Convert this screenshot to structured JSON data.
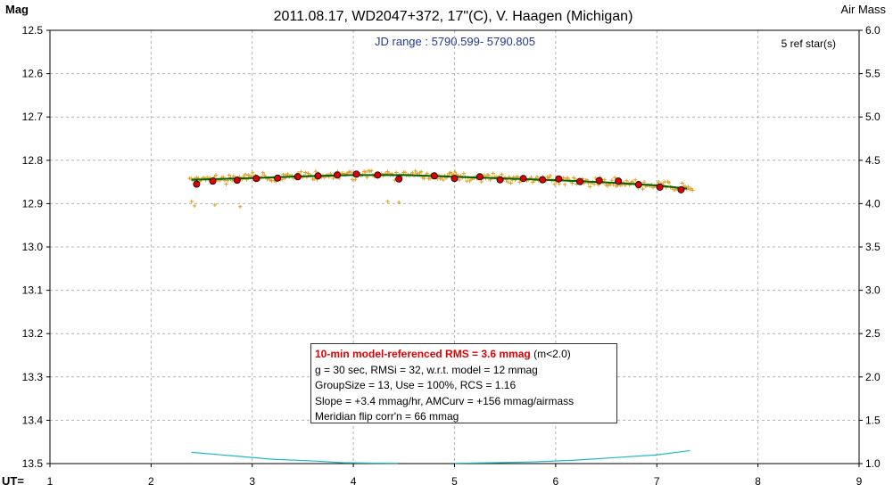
{
  "chart_data": {
    "type": "scatter",
    "title": "2011.08.17, WD2047+372, 17\"(C), V. Haagen (Michigan)",
    "ylabel_left": "Mag",
    "ylabel_right": "Air Mass",
    "xlabel": "UT=",
    "subtitle": "JD range : 5790.599- 5790.805",
    "ref_stars": "5 ref star(s)",
    "xlim": [
      1,
      9
    ],
    "ylim_left": [
      12.5,
      13.5
    ],
    "ylim_right": [
      1.0,
      6.0
    ],
    "x_ticks": [
      "1",
      "2",
      "3",
      "4",
      "5",
      "6",
      "7",
      "8",
      "9"
    ],
    "y_ticks_left": [
      "12.5",
      "12.6",
      "12.7",
      "12.8",
      "12.9",
      "13.0",
      "13.1",
      "13.2",
      "13.3",
      "13.4",
      "13.5"
    ],
    "y_ticks_right": [
      "6.0",
      "5.5",
      "5.0",
      "4.5",
      "4.0",
      "3.5",
      "3.0",
      "2.5",
      "2.0",
      "1.5",
      "1.0"
    ],
    "grid": true,
    "series": [
      {
        "kind": "binned_means",
        "color": "#dd0000",
        "x": [
          2.45,
          2.61,
          2.85,
          3.04,
          3.25,
          3.45,
          3.65,
          3.84,
          4.03,
          4.24,
          4.45,
          4.8,
          5.0,
          5.25,
          5.45,
          5.68,
          5.87,
          6.03,
          6.24,
          6.43,
          6.62,
          6.82,
          7.03,
          7.24
        ],
        "y": [
          12.855,
          12.848,
          12.846,
          12.842,
          12.841,
          12.838,
          12.836,
          12.834,
          12.832,
          12.834,
          12.843,
          12.836,
          12.842,
          12.838,
          12.845,
          12.842,
          12.845,
          12.843,
          12.849,
          12.847,
          12.848,
          12.856,
          12.862,
          12.868
        ]
      },
      {
        "kind": "model_fit",
        "color": "#006400",
        "x": [
          2.4,
          3.0,
          3.5,
          4.0,
          4.5,
          5.0,
          5.5,
          6.0,
          6.5,
          7.0,
          7.33
        ],
        "y": [
          12.845,
          12.841,
          12.837,
          12.834,
          12.834,
          12.838,
          12.842,
          12.846,
          12.851,
          12.858,
          12.866
        ]
      },
      {
        "kind": "air_mass",
        "axis": "right",
        "color": "#1fb8c8",
        "x": [
          2.4,
          2.8,
          3.2,
          3.6,
          3.9,
          4.2,
          4.44,
          5.0,
          5.4,
          5.8,
          6.2,
          6.6,
          7.0,
          7.33
        ],
        "y": [
          1.13,
          1.09,
          1.05,
          1.03,
          1.01,
          1.005,
          1.003,
          1.003,
          1.01,
          1.02,
          1.04,
          1.07,
          1.1,
          1.15
        ]
      },
      {
        "kind": "raw_points",
        "color": "#e0a020",
        "x_range": [
          2.38,
          7.36
        ],
        "outliers": [
          {
            "x": 2.4,
            "y": 12.895
          },
          {
            "x": 2.43,
            "y": 12.905
          },
          {
            "x": 2.63,
            "y": 12.903
          },
          {
            "x": 2.88,
            "y": 12.907
          },
          {
            "x": 4.34,
            "y": 12.895
          },
          {
            "x": 4.45,
            "y": 12.897
          }
        ]
      }
    ],
    "stats": {
      "line1": "10-min model-referenced RMS = 3.6 mmag",
      "line1_suffix": "(m<2.0)",
      "line2": "g = 30 sec, RMSi = 32, w.r.t. model = 12 mmag",
      "line3": "GroupSize = 13, Use = 100%, RCS = 1.16",
      "line4": "Slope = +3.4 mmag/hr, AMCurv = +156 mmag/airmass",
      "line5": "Meridian flip corr'n = 66 mmag"
    }
  }
}
